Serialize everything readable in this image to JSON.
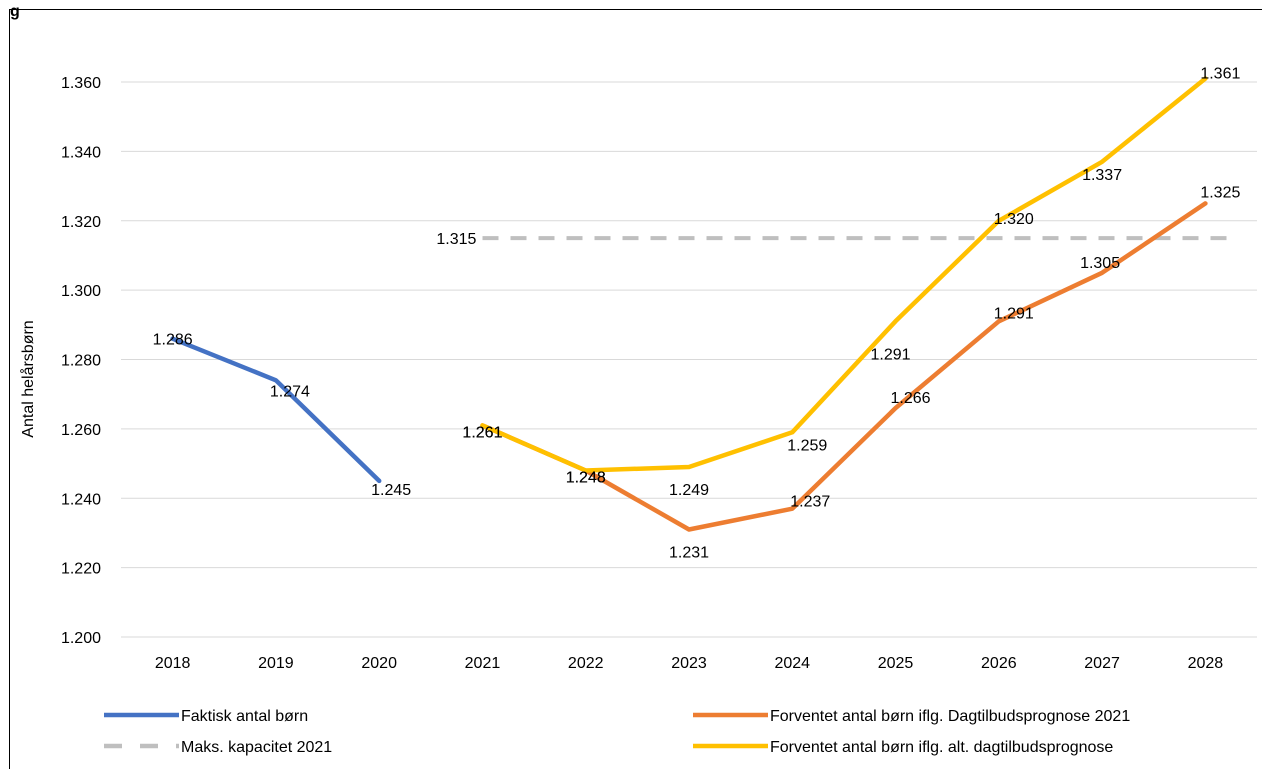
{
  "title_fragment": "g",
  "chart_data": {
    "type": "line",
    "title": "",
    "xlabel": "",
    "ylabel": "Antal helårsbørn",
    "categories": [
      "2018",
      "2019",
      "2020",
      "2021",
      "2022",
      "2023",
      "2024",
      "2025",
      "2026",
      "2027",
      "2028"
    ],
    "ylim": [
      1200,
      1360
    ],
    "yticks": [
      1200,
      1220,
      1240,
      1260,
      1280,
      1300,
      1320,
      1340,
      1360
    ],
    "ytick_labels": [
      "1.200",
      "1.220",
      "1.240",
      "1.260",
      "1.280",
      "1.300",
      "1.320",
      "1.340",
      "1.360"
    ],
    "grid": true,
    "legend_position": "bottom",
    "series": [
      {
        "name": "Faktisk antal børn",
        "color": "#4472C4",
        "style": "solid",
        "values": [
          1286,
          1274,
          1245,
          null,
          null,
          null,
          null,
          null,
          null,
          null,
          null
        ],
        "labels": [
          "1.286",
          "1.274",
          "1.245",
          null,
          null,
          null,
          null,
          null,
          null,
          null,
          null
        ]
      },
      {
        "name": "Maks. kapacitet 2021",
        "color": "#BFBFBF",
        "style": "dashed",
        "values": [
          null,
          null,
          null,
          1315,
          1315,
          1315,
          1315,
          1315,
          1315,
          1315,
          1315
        ],
        "labels": [
          null,
          null,
          null,
          "1.315",
          null,
          null,
          null,
          null,
          null,
          null,
          null
        ]
      },
      {
        "name": "Forventet antal børn iflg. Dagtilbudsprognose 2021",
        "color": "#ED7D31",
        "style": "solid",
        "values": [
          null,
          null,
          null,
          1261,
          1248,
          1231,
          1237,
          1266,
          1291,
          1305,
          1325
        ],
        "labels": [
          null,
          null,
          null,
          "1.261",
          "1.248",
          "1.231",
          "1.237",
          "1.266",
          "1.291",
          "1.305",
          "1.325"
        ]
      },
      {
        "name": "Forventet antal børn iflg. alt. dagtilbudsprognose",
        "color": "#FFC000",
        "style": "solid",
        "values": [
          null,
          null,
          null,
          1261,
          1248,
          1249,
          1259,
          1291,
          1320,
          1337,
          1361
        ],
        "labels": [
          null,
          null,
          null,
          "1.261",
          "1.248",
          "1.249",
          "1.259",
          "1.291",
          "1.320",
          "1.337",
          "1.361"
        ]
      }
    ]
  }
}
